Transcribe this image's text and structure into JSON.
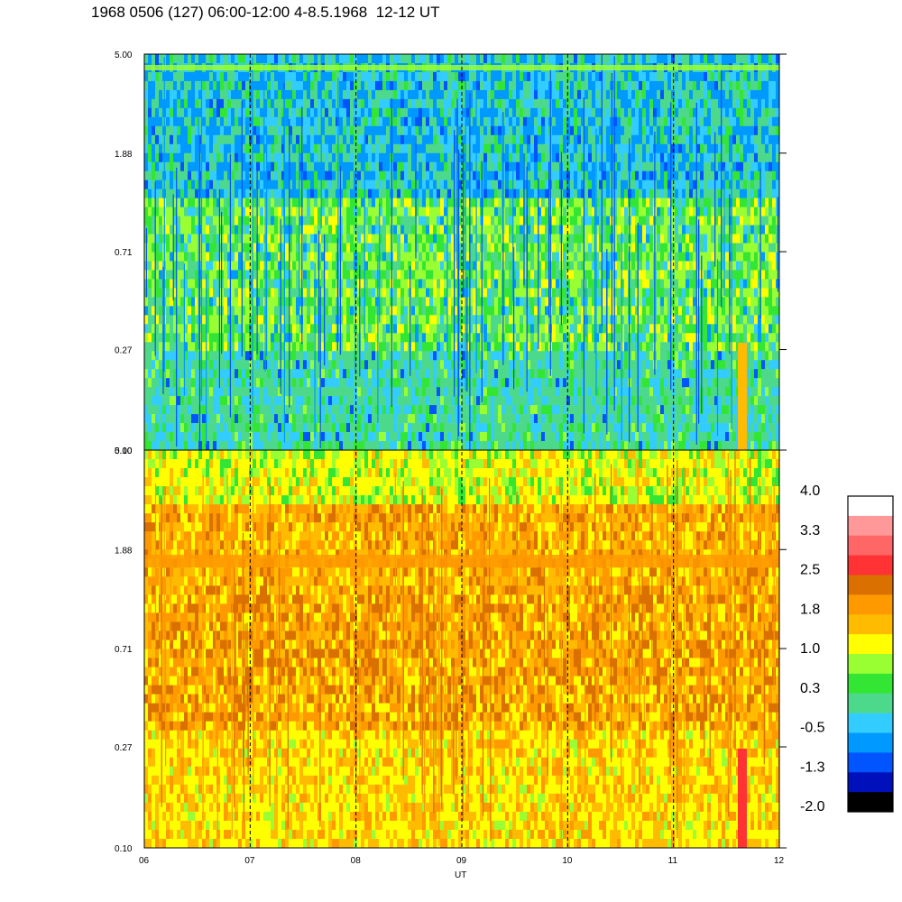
{
  "title": "1968 0506 (127) 06:00-12:00 4-8.5.1968  12-12 UT",
  "chart_data": [
    {
      "type": "heatmap",
      "panel": "top",
      "x_range": [
        6,
        12
      ],
      "y_scale": "log",
      "y_range": [
        0.1,
        5.0
      ],
      "y_ticks": [
        "0.10",
        "0.27",
        "0.71",
        "1.88",
        "5.00"
      ],
      "grid": "dashed vertical lines at each hour",
      "dominant_values": "mostly green/teal (0.3 to 1.0) with blue streaks near 1.88-5.00 and yellow patches around 0.71"
    },
    {
      "type": "heatmap",
      "panel": "bottom",
      "x_range": [
        6,
        12
      ],
      "y_scale": "log",
      "y_range": [
        0.1,
        5.0
      ],
      "y_ticks": [
        "0.10",
        "0.27",
        "0.71",
        "1.88",
        "5.00"
      ],
      "x_ticks": [
        "06",
        "07",
        "08",
        "09",
        "10",
        "11",
        "12"
      ],
      "xlabel": "UT",
      "grid": "dashed vertical lines at each hour",
      "dominant_values": "mostly yellow/orange (1.0 to 2.5) with orange band near 1.88 and a red spike near 11.6 UT at low values"
    }
  ],
  "colorbar": {
    "labels": [
      "4.0",
      "3.3",
      "2.5",
      "1.8",
      "1.0",
      "0.3",
      "-0.5",
      "-1.3",
      "-2.0"
    ],
    "colors": [
      "#ffffff",
      "#ff9999",
      "#ff6666",
      "#ff3333",
      "#d97000",
      "#ff9900",
      "#ffbb00",
      "#ffff00",
      "#99ff33",
      "#33e633",
      "#4dd98c",
      "#33ccff",
      "#0099ff",
      "#0055ff",
      "#0011bb",
      "#000000"
    ]
  },
  "palette": {
    "top": [
      "#33ccff",
      "#4dd98c",
      "#33e633",
      "#99ff33",
      "#ffff00",
      "#0099ff",
      "#0055ff",
      "#ffbb00"
    ],
    "bottom": [
      "#ffff00",
      "#ffbb00",
      "#ff9900",
      "#d97000",
      "#99ff33",
      "#33e633",
      "#ff3333"
    ]
  }
}
